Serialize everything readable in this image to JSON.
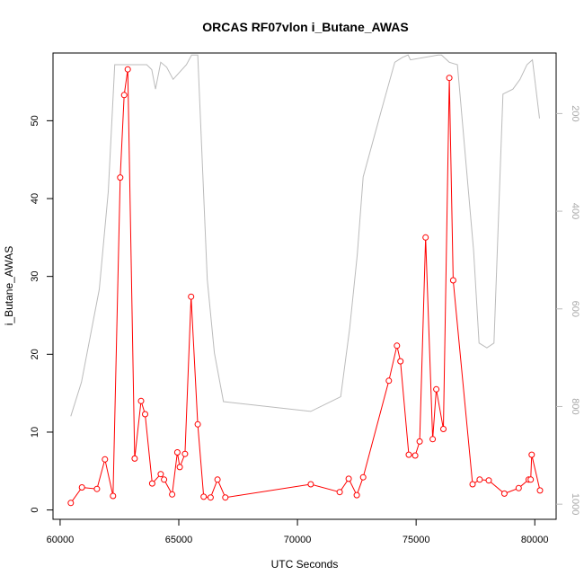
{
  "chart_data": {
    "type": "line",
    "title": "ORCAS RF07vlon i_Butane_AWAS",
    "xlabel": "UTC Seconds",
    "ylabel": "i_Butane_AWAS",
    "xlim": [
      59700,
      80900
    ],
    "ylim": [
      -1.2,
      58.7
    ],
    "xticks": [
      60000,
      65000,
      70000,
      75000,
      80000
    ],
    "yticks": [
      0,
      10,
      20,
      30,
      40,
      50
    ],
    "right_axis": {
      "ticks": [
        200,
        400,
        600,
        800,
        1000
      ],
      "ylim": [
        1031,
        76
      ],
      "color": "#bbbbbb"
    },
    "series": [
      {
        "color": "#ff0000",
        "marker": "open-circle",
        "x": [
          60450,
          60920,
          61550,
          61890,
          62230,
          62530,
          62700,
          62850,
          63140,
          63410,
          63580,
          63880,
          64240,
          64380,
          64720,
          64940,
          65040,
          65260,
          65520,
          65800,
          66050,
          66340,
          66630,
          66960,
          70560,
          71780,
          72160,
          72500,
          72770,
          73850,
          74190,
          74340,
          74690,
          74960,
          75150,
          75400,
          75700,
          75850,
          76150,
          76400,
          76560,
          77380,
          77680,
          78060,
          78720,
          79320,
          79740,
          79830,
          79870,
          80220
        ],
        "y": [
          0.9,
          2.9,
          2.7,
          6.5,
          1.8,
          42.7,
          53.3,
          56.6,
          6.6,
          14.0,
          12.3,
          3.4,
          4.6,
          3.9,
          2.0,
          7.4,
          5.5,
          7.2,
          27.4,
          11.0,
          1.7,
          1.6,
          3.9,
          1.6,
          3.3,
          2.3,
          4.0,
          1.9,
          4.2,
          16.6,
          21.1,
          19.1,
          7.1,
          7.0,
          8.8,
          35.0,
          9.1,
          15.5,
          10.4,
          55.5,
          29.5,
          3.3,
          3.9,
          3.8,
          2.1,
          2.8,
          3.9,
          3.9,
          7.1,
          2.5
        ]
      },
      {
        "color": "#bbbbbb",
        "axis": "right",
        "x": [
          60450,
          60900,
          61650,
          62030,
          62300,
          63650,
          63860,
          64020,
          64240,
          64490,
          64760,
          65320,
          65540,
          65800,
          66200,
          66500,
          66880,
          70560,
          71820,
          72200,
          72520,
          72770,
          73500,
          74100,
          74420,
          74660,
          74760,
          75930,
          76070,
          76400,
          76740,
          77420,
          77650,
          77980,
          78280,
          78660,
          79080,
          79380,
          79670,
          79900,
          80200
        ],
        "y": [
          820,
          750,
          560,
          360,
          100,
          100,
          110,
          150,
          95,
          105,
          130,
          100,
          80,
          80,
          540,
          690,
          790,
          810,
          780,
          640,
          490,
          330,
          200,
          95,
          85,
          80,
          90,
          80,
          80,
          95,
          100,
          480,
          670,
          680,
          670,
          160,
          150,
          130,
          100,
          90,
          210
        ]
      }
    ]
  }
}
